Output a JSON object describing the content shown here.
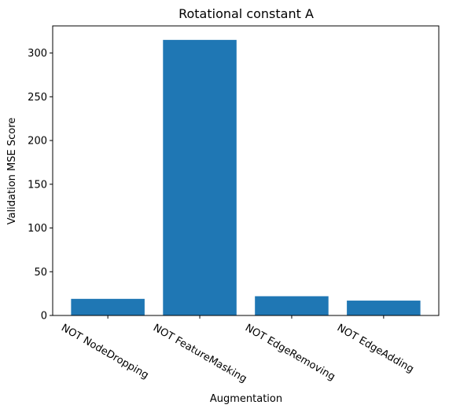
{
  "chart_data": {
    "type": "bar",
    "title": "Rotational constant A",
    "xlabel": "Augmentation",
    "ylabel": "Validation MSE Score",
    "categories": [
      "NOT NodeDropping",
      "NOT FeatureMasking",
      "NOT EdgeRemoving",
      "NOT EdgeAdding"
    ],
    "values": [
      19,
      315,
      22,
      17
    ],
    "ylim": [
      0,
      331
    ],
    "yticks": [
      0,
      50,
      100,
      150,
      200,
      250,
      300
    ],
    "grid": false,
    "legend": "none",
    "bar_color": "#1f77b4"
  }
}
